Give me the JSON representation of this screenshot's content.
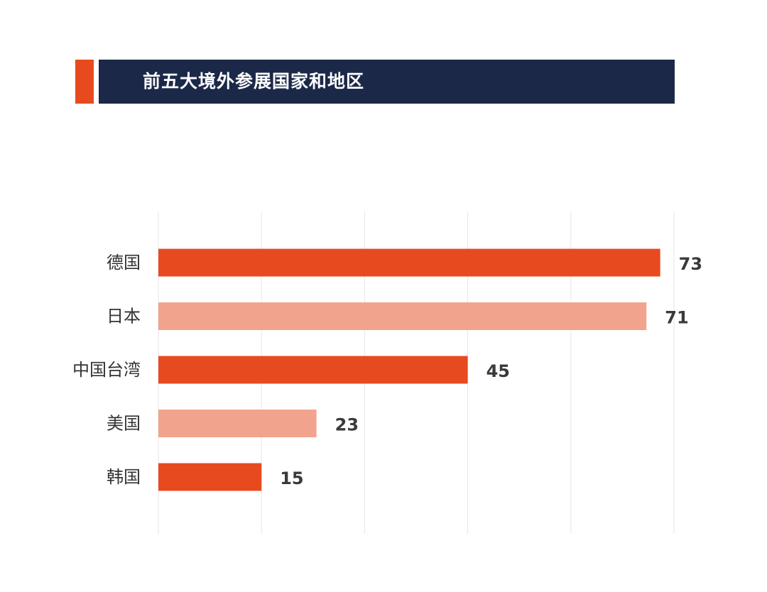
{
  "header": {
    "title": "前五大境外参展国家和地区"
  },
  "colors": {
    "accent": "#e84a1f",
    "accent_light": "#f2a38d",
    "title_bar": "#1b2848",
    "gridline": "#e6e6e6"
  },
  "chart_data": {
    "type": "bar",
    "orientation": "horizontal",
    "title": "前五大境外参展国家和地区",
    "categories": [
      "德国",
      "日本",
      "中国台湾",
      "美国",
      "韩国"
    ],
    "values": [
      73,
      71,
      45,
      23,
      15
    ],
    "value_labels": [
      "73",
      "71",
      "45",
      "23",
      "15"
    ],
    "bar_colors": [
      "#e84a1f",
      "#f2a38d",
      "#e84a1f",
      "#f2a38d",
      "#e84a1f"
    ],
    "xlim": [
      0,
      75
    ],
    "x_gridlines": [
      0,
      15,
      30,
      45,
      60,
      75
    ],
    "grid": true,
    "legend": "none"
  }
}
